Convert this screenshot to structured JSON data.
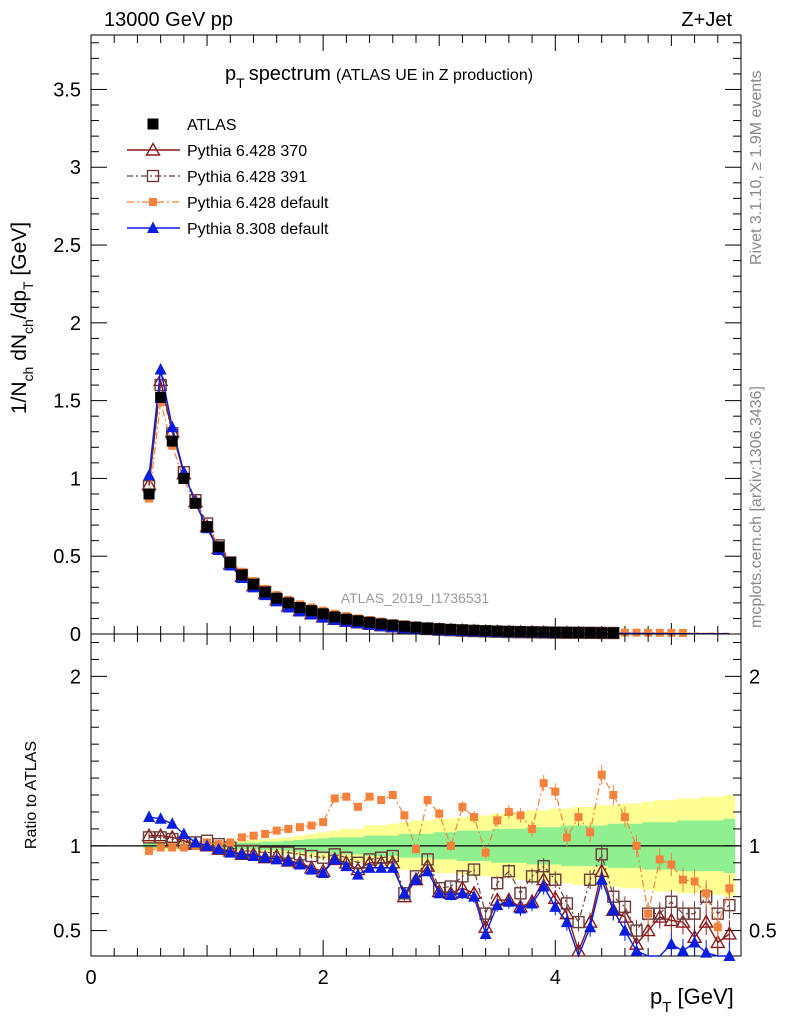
{
  "header": {
    "left": "13000 GeV pp",
    "right": "Z+Jet"
  },
  "side_labels": {
    "rivet": "Rivet 3.1.10, ≥ 1.9M events",
    "mcplots": "mcplots.cern.ch [arXiv:1306.3436]"
  },
  "watermark": "ATLAS_2019_I1736531",
  "chart_data": [
    {
      "type": "scatter",
      "title_main": "p",
      "title_sub": "T",
      "title_rest": "spectrum",
      "title_note": "(ATLAS UE in Z production)",
      "ylabel_parts": [
        "1/N",
        "ch",
        " dN",
        "ch",
        "/dp",
        "T",
        " [GeV]"
      ],
      "xlim": [
        0,
        5.6
      ],
      "ylim": [
        0,
        3.85
      ],
      "yticks": [
        0,
        0.5,
        1,
        1.5,
        2,
        2.5,
        3,
        3.5
      ],
      "ytick_labels": [
        "0",
        "0.5",
        "1",
        "1.5",
        "2",
        "2.5",
        "3",
        "3.5"
      ],
      "x": [
        0.5,
        0.6,
        0.7,
        0.8,
        0.9,
        1.0,
        1.1,
        1.2,
        1.3,
        1.4,
        1.5,
        1.6,
        1.7,
        1.8,
        1.9,
        2.0,
        2.1,
        2.2,
        2.3,
        2.4,
        2.5,
        2.6,
        2.7,
        2.8,
        2.9,
        3.0,
        3.1,
        3.2,
        3.3,
        3.4,
        3.5,
        3.6,
        3.7,
        3.8,
        3.9,
        4.0,
        4.1,
        4.2,
        4.3,
        4.4,
        4.5,
        4.6,
        4.7,
        4.8,
        4.9,
        5.0,
        5.1,
        5.2,
        5.3,
        5.4,
        5.5
      ],
      "legend_position": "top-left",
      "series": [
        {
          "name": "ATLAS",
          "marker": "filled-square",
          "color": "#000000",
          "values": [
            0.9,
            1.52,
            1.24,
            1.0,
            0.84,
            0.69,
            0.56,
            0.46,
            0.38,
            0.32,
            0.27,
            0.23,
            0.2,
            0.17,
            0.15,
            0.13,
            0.11,
            0.095,
            0.085,
            0.075,
            0.065,
            0.057,
            0.05,
            0.044,
            0.039,
            0.034,
            0.03,
            0.027,
            0.024,
            0.021,
            0.019,
            0.017,
            0.015,
            0.013,
            0.012,
            0.011,
            0.01,
            0.009,
            0.008,
            0.007,
            0.0065,
            0.006,
            0.0055,
            0.005,
            0.0045,
            0.004,
            0.0037,
            0.0034,
            0.0031,
            0.0028,
            0.0025
          ]
        },
        {
          "name": "Pythia 6.428 370",
          "marker": "open-triangle",
          "color": "#8b1a1a",
          "values": [
            0.96,
            1.63,
            1.3,
            1.03,
            0.85,
            0.69,
            0.55,
            0.45,
            0.37,
            0.31,
            0.26,
            0.22,
            0.18,
            0.15,
            0.13,
            0.11,
            0.095,
            0.083,
            0.073,
            0.064,
            0.054,
            0.047,
            0.04,
            0.035,
            0.03,
            0.026,
            0.023,
            0.02,
            0.017,
            0.015,
            0.013,
            0.011,
            0.01,
            0.009,
            0.008,
            0.007,
            0.0065,
            0.006,
            0.0055,
            0.005,
            0.0045,
            0.004,
            0.0036,
            0.0033,
            0.003,
            0.0027,
            0.0024,
            0.0022,
            0.002,
            0.0018,
            0.0016
          ]
        },
        {
          "name": "Pythia 6.428 391",
          "marker": "open-square",
          "color": "#6b3c3c",
          "values": [
            0.95,
            1.6,
            1.29,
            1.04,
            0.86,
            0.71,
            0.57,
            0.46,
            0.38,
            0.32,
            0.27,
            0.22,
            0.19,
            0.16,
            0.14,
            0.12,
            0.1,
            0.087,
            0.076,
            0.067,
            0.057,
            0.05,
            0.043,
            0.037,
            0.032,
            0.028,
            0.025,
            0.022,
            0.019,
            0.017,
            0.015,
            0.013,
            0.012,
            0.011,
            0.01,
            0.009,
            0.0085,
            0.008,
            0.0075,
            0.007,
            0.0065,
            0.006,
            0.0055,
            0.005,
            0.0045,
            0.004,
            0.0036,
            0.0033,
            0.003,
            0.0027,
            0.0024
          ]
        },
        {
          "name": "Pythia 6.428 default",
          "marker": "filled-square-small",
          "color": "#f4813c",
          "values": [
            0.87,
            1.49,
            1.21,
            0.99,
            0.84,
            0.7,
            0.57,
            0.47,
            0.4,
            0.34,
            0.29,
            0.25,
            0.22,
            0.19,
            0.17,
            0.15,
            0.13,
            0.115,
            0.1,
            0.09,
            0.08,
            0.07,
            0.062,
            0.055,
            0.048,
            0.043,
            0.038,
            0.034,
            0.03,
            0.027,
            0.024,
            0.022,
            0.02,
            0.018,
            0.016,
            0.015,
            0.014,
            0.013,
            0.012,
            0.011,
            0.01,
            0.009,
            0.0085,
            0.008,
            0.0075,
            0.007,
            0.0065,
            0.006,
            0.0055,
            0.005,
            0.0045
          ]
        },
        {
          "name": "Pythia 8.308 default",
          "marker": "filled-triangle",
          "color": "#0a1ee0",
          "values": [
            1.02,
            1.7,
            1.33,
            1.04,
            0.84,
            0.68,
            0.54,
            0.44,
            0.36,
            0.3,
            0.25,
            0.21,
            0.17,
            0.145,
            0.125,
            0.105,
            0.09,
            0.078,
            0.068,
            0.059,
            0.05,
            0.043,
            0.037,
            0.032,
            0.028,
            0.024,
            0.021,
            0.018,
            0.016,
            0.014,
            0.012,
            0.011,
            0.0095,
            0.0085,
            0.0075,
            0.0068,
            0.006,
            0.0055,
            0.005,
            0.0045,
            0.004,
            0.0036,
            0.0032,
            0.0029,
            0.0026,
            0.0023,
            0.0021,
            0.0019,
            0.0017,
            0.0015,
            0.0013
          ]
        }
      ]
    },
    {
      "type": "scatter",
      "ylabel": "Ratio to ATLAS",
      "xlabel_main": "p",
      "xlabel_sub": "T",
      "xlabel_rest": " [GeV]",
      "xlim": [
        0,
        5.6
      ],
      "ylim": [
        0.35,
        2.25
      ],
      "xticks": [
        0,
        2,
        4
      ],
      "xtick_labels": [
        "0",
        "2",
        "4"
      ],
      "yticks": [
        0.5,
        1,
        2
      ],
      "ytick_labels": [
        "0.5",
        "1",
        "2"
      ],
      "reference_line": 1,
      "x": [
        0.5,
        0.6,
        0.7,
        0.8,
        0.9,
        1.0,
        1.1,
        1.2,
        1.3,
        1.4,
        1.5,
        1.6,
        1.7,
        1.8,
        1.9,
        2.0,
        2.1,
        2.2,
        2.3,
        2.4,
        2.5,
        2.6,
        2.7,
        2.8,
        2.9,
        3.0,
        3.1,
        3.2,
        3.3,
        3.4,
        3.5,
        3.6,
        3.7,
        3.8,
        3.9,
        4.0,
        4.1,
        4.2,
        4.3,
        4.4,
        4.5,
        4.6,
        4.7,
        4.8,
        4.9,
        5.0,
        5.1,
        5.2,
        5.3,
        5.4,
        5.5
      ],
      "band_inner_halfwidth": [
        0.015,
        0.015,
        0.015,
        0.015,
        0.015,
        0.015,
        0.015,
        0.015,
        0.02,
        0.02,
        0.025,
        0.025,
        0.03,
        0.035,
        0.04,
        0.045,
        0.05,
        0.05,
        0.05,
        0.06,
        0.06,
        0.06,
        0.07,
        0.07,
        0.07,
        0.08,
        0.08,
        0.09,
        0.09,
        0.09,
        0.1,
        0.1,
        0.1,
        0.11,
        0.11,
        0.11,
        0.12,
        0.12,
        0.12,
        0.12,
        0.13,
        0.13,
        0.13,
        0.14,
        0.14,
        0.14,
        0.15,
        0.15,
        0.15,
        0.15,
        0.16
      ],
      "band_outer_halfwidth": [
        0.025,
        0.025,
        0.025,
        0.025,
        0.025,
        0.025,
        0.025,
        0.025,
        0.03,
        0.035,
        0.04,
        0.045,
        0.05,
        0.06,
        0.07,
        0.08,
        0.09,
        0.1,
        0.1,
        0.12,
        0.12,
        0.13,
        0.14,
        0.15,
        0.15,
        0.16,
        0.16,
        0.17,
        0.18,
        0.18,
        0.19,
        0.19,
        0.2,
        0.21,
        0.21,
        0.22,
        0.22,
        0.23,
        0.23,
        0.24,
        0.24,
        0.25,
        0.25,
        0.26,
        0.27,
        0.27,
        0.28,
        0.28,
        0.29,
        0.29,
        0.3
      ],
      "series": [
        {
          "name": "Pythia 6.428 370",
          "color": "#8b1a1a",
          "marker": "open-triangle",
          "values": [
            1.06,
            1.06,
            1.05,
            1.03,
            1.01,
            1.0,
            0.98,
            0.97,
            0.95,
            0.95,
            0.93,
            0.94,
            0.91,
            0.9,
            0.87,
            0.85,
            0.92,
            0.9,
            0.86,
            0.9,
            0.9,
            0.9,
            0.7,
            0.8,
            0.88,
            0.73,
            0.72,
            0.75,
            0.72,
            0.52,
            0.68,
            0.68,
            0.64,
            0.67,
            0.8,
            0.69,
            0.6,
            0.38,
            0.55,
            0.85,
            0.62,
            0.58,
            0.42,
            0.5,
            0.58,
            0.56,
            0.55,
            0.46,
            0.55,
            0.43,
            0.48
          ]
        },
        {
          "name": "Pythia 6.428 391",
          "color": "#6b3c3c",
          "marker": "open-square",
          "values": [
            1.05,
            1.05,
            1.04,
            1.02,
            1.02,
            1.03,
            1.01,
            0.99,
            0.97,
            0.97,
            0.96,
            0.96,
            0.96,
            0.95,
            0.94,
            0.93,
            0.95,
            0.93,
            0.9,
            0.92,
            0.93,
            0.94,
            0.72,
            0.82,
            0.92,
            0.75,
            0.76,
            0.82,
            0.86,
            0.6,
            0.78,
            0.85,
            0.72,
            0.82,
            0.88,
            0.8,
            0.66,
            0.55,
            0.8,
            0.95,
            0.7,
            0.64,
            0.5,
            0.6,
            0.6,
            0.67,
            0.6,
            0.6,
            0.7,
            0.6,
            0.65
          ]
        },
        {
          "name": "Pythia 6.428 default",
          "color": "#f4813c",
          "marker": "filled-square-small",
          "values": [
            0.97,
            0.99,
            0.99,
            0.99,
            1.0,
            1.02,
            1.01,
            1.02,
            1.05,
            1.06,
            1.07,
            1.09,
            1.1,
            1.11,
            1.12,
            1.14,
            1.28,
            1.29,
            1.23,
            1.29,
            1.27,
            1.3,
            1.18,
            0.98,
            1.27,
            1.19,
            1.0,
            1.23,
            1.17,
            0.96,
            1.15,
            1.2,
            1.18,
            1.1,
            1.37,
            1.32,
            1.05,
            1.17,
            1.08,
            1.42,
            1.3,
            1.17,
            1.0,
            0.6,
            0.92,
            0.89,
            0.8,
            0.79,
            0.72,
            0.52,
            0.75
          ]
        },
        {
          "name": "Pythia 8.308 default",
          "color": "#0a1ee0",
          "marker": "filled-triangle",
          "values": [
            1.17,
            1.16,
            1.13,
            1.07,
            1.02,
            1.0,
            0.98,
            0.96,
            0.95,
            0.94,
            0.93,
            0.92,
            0.91,
            0.89,
            0.86,
            0.84,
            0.92,
            0.88,
            0.83,
            0.87,
            0.87,
            0.87,
            0.72,
            0.8,
            0.85,
            0.72,
            0.71,
            0.72,
            0.7,
            0.48,
            0.65,
            0.67,
            0.63,
            0.66,
            0.76,
            0.64,
            0.55,
            0.33,
            0.52,
            0.8,
            0.62,
            0.5,
            0.38,
            0.34,
            0.33,
            0.42,
            0.38,
            0.43,
            0.37,
            0.33,
            0.35
          ]
        }
      ]
    }
  ]
}
